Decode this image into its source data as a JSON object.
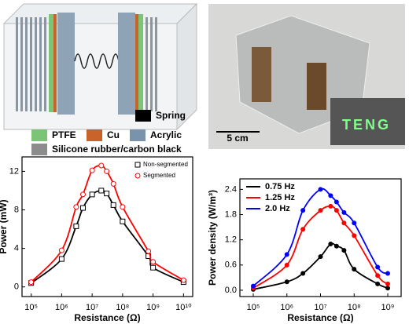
{
  "schematic": {
    "legend": [
      "Spring",
      "PTFE",
      "Cu",
      "Acrylic",
      "Silicone rubber/carbon black"
    ]
  },
  "photo": {
    "scale": "5 cm",
    "display": "TENG"
  },
  "chart_data": [
    {
      "type": "line",
      "xlabel": "Resistance (Ω)",
      "ylabel": "Power (mW)",
      "xscale": "log",
      "legend": "upper right",
      "x": [
        100000,
        1000000,
        3000000,
        5000000,
        10000000,
        20000000,
        30000000,
        50000000,
        100000000,
        700000000,
        1000000000,
        10000000000
      ],
      "series": [
        {
          "name": "Non-segmented",
          "color": "#000000",
          "marker": "square",
          "values": [
            0.4,
            2.9,
            6.3,
            8.2,
            9.6,
            10.0,
            9.7,
            8.5,
            6.8,
            3.2,
            2.0,
            0.5
          ]
        },
        {
          "name": "Segmented",
          "color": "#ff0000",
          "marker": "circle",
          "values": [
            0.5,
            3.8,
            8.3,
            9.6,
            12.1,
            12.6,
            12.0,
            10.7,
            8.3,
            3.7,
            2.6,
            0.7
          ]
        }
      ],
      "xlim": [
        50000,
        20000000000
      ],
      "ylim": [
        -1,
        13.5
      ],
      "xticks": [
        {
          "value": 100000,
          "label": "10⁵"
        },
        {
          "value": 1000000,
          "label": "10⁶"
        },
        {
          "value": 10000000,
          "label": "10⁷"
        },
        {
          "value": 100000000,
          "label": "10⁸"
        },
        {
          "value": 1000000000,
          "label": "10⁹"
        },
        {
          "value": 10000000000,
          "label": "10¹⁰"
        }
      ],
      "yticks": [
        0,
        4,
        8,
        12
      ]
    },
    {
      "type": "line",
      "xlabel": "Resistance (Ω)",
      "ylabel": "Power density (W/m³)",
      "xscale": "log",
      "legend": "upper left",
      "x": [
        100000,
        1000000,
        3000000,
        10000000,
        20000000,
        30000000,
        50000000,
        100000000,
        500000000,
        1000000000
      ],
      "series": [
        {
          "name": "0.75 Hz",
          "color": "#000000",
          "marker": "circle",
          "values": [
            0.02,
            0.2,
            0.4,
            0.8,
            1.1,
            1.05,
            0.95,
            0.5,
            0.15,
            0.05
          ]
        },
        {
          "name": "1.25 Hz",
          "color": "#ff0000",
          "marker": "circle",
          "values": [
            0.05,
            0.6,
            1.45,
            1.9,
            2.0,
            1.9,
            1.6,
            1.3,
            0.35,
            0.15
          ]
        },
        {
          "name": "2.0 Hz",
          "color": "#0000ff",
          "marker": "circle",
          "values": [
            0.1,
            0.85,
            1.9,
            2.4,
            2.25,
            2.1,
            1.85,
            1.6,
            0.55,
            0.4
          ]
        }
      ],
      "xlim": [
        40000,
        2500000000
      ],
      "ylim": [
        -0.15,
        2.65
      ],
      "xticks": [
        {
          "value": 100000,
          "label": "10⁵"
        },
        {
          "value": 1000000,
          "label": "10⁶"
        },
        {
          "value": 10000000,
          "label": "10⁷"
        },
        {
          "value": 100000000,
          "label": "10⁸"
        },
        {
          "value": 1000000000,
          "label": "10⁹"
        }
      ],
      "yticks": [
        {
          "value": 0,
          "label": "0.0"
        },
        {
          "value": 0.6,
          "label": "0.6"
        },
        {
          "value": 1.2,
          "label": "1.2"
        },
        {
          "value": 1.8,
          "label": "1.8"
        },
        {
          "value": 2.4,
          "label": "2.4"
        }
      ]
    }
  ]
}
